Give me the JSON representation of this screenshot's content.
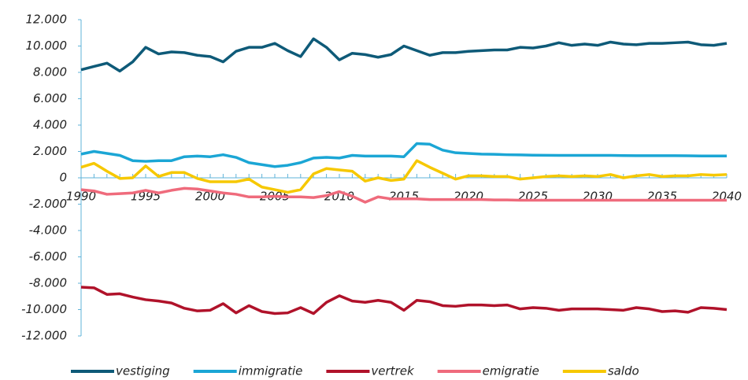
{
  "chart_data": {
    "type": "line",
    "x": [
      1990,
      1991,
      1992,
      1993,
      1994,
      1995,
      1996,
      1997,
      1998,
      1999,
      2000,
      2001,
      2002,
      2003,
      2004,
      2005,
      2006,
      2007,
      2008,
      2009,
      2010,
      2011,
      2012,
      2013,
      2014,
      2015,
      2016,
      2017,
      2018,
      2019,
      2020,
      2021,
      2022,
      2023,
      2024,
      2025,
      2026,
      2027,
      2028,
      2029,
      2030,
      2031,
      2032,
      2033,
      2034,
      2035,
      2036,
      2037,
      2038,
      2039,
      2040
    ],
    "series": [
      {
        "name": "vestiging",
        "color": "#0e5a78",
        "values": [
          8200,
          8450,
          8700,
          8100,
          8800,
          9900,
          9400,
          9550,
          9500,
          9300,
          9200,
          8800,
          9600,
          9900,
          9900,
          10200,
          9650,
          9200,
          10550,
          9900,
          8950,
          9450,
          9350,
          9150,
          9350,
          10000,
          9650,
          9300,
          9500,
          9500,
          9600,
          9650,
          9700,
          9700,
          9900,
          9850,
          10000,
          10250,
          10050,
          10150,
          10050,
          10300,
          10150,
          10100,
          10200,
          10200,
          10250,
          10300,
          10100,
          10050,
          10200
        ]
      },
      {
        "name": "immigratie",
        "color": "#1ba6d5",
        "values": [
          1800,
          2000,
          1850,
          1700,
          1300,
          1250,
          1300,
          1300,
          1600,
          1650,
          1600,
          1750,
          1550,
          1150,
          1000,
          850,
          950,
          1150,
          1500,
          1550,
          1500,
          1700,
          1650,
          1650,
          1650,
          1600,
          2600,
          2550,
          2100,
          1900,
          1850,
          1800,
          1780,
          1750,
          1740,
          1720,
          1710,
          1700,
          1700,
          1700,
          1700,
          1700,
          1690,
          1680,
          1680,
          1680,
          1680,
          1670,
          1660,
          1660,
          1660
        ]
      },
      {
        "name": "vertrek",
        "color": "#b0122a",
        "values": [
          -8300,
          -8350,
          -8850,
          -8800,
          -9050,
          -9250,
          -9350,
          -9500,
          -9900,
          -10100,
          -10050,
          -9550,
          -10250,
          -9700,
          -10150,
          -10300,
          -10250,
          -9850,
          -10300,
          -9450,
          -8950,
          -9350,
          -9450,
          -9300,
          -9450,
          -10050,
          -9300,
          -9400,
          -9700,
          -9750,
          -9650,
          -9650,
          -9700,
          -9650,
          -9950,
          -9850,
          -9900,
          -10050,
          -9950,
          -9950,
          -9950,
          -10000,
          -10050,
          -9850,
          -9950,
          -10150,
          -10100,
          -10200,
          -9850,
          -9900,
          -10000
        ]
      },
      {
        "name": "emigratie",
        "color": "#ef6b7c",
        "values": [
          -900,
          -1000,
          -1250,
          -1200,
          -1150,
          -950,
          -1150,
          -950,
          -800,
          -850,
          -1000,
          -1150,
          -1250,
          -1450,
          -1450,
          -1400,
          -1450,
          -1450,
          -1500,
          -1350,
          -1050,
          -1400,
          -1850,
          -1450,
          -1600,
          -1600,
          -1600,
          -1650,
          -1650,
          -1650,
          -1650,
          -1650,
          -1680,
          -1680,
          -1700,
          -1700,
          -1700,
          -1700,
          -1700,
          -1700,
          -1700,
          -1700,
          -1700,
          -1700,
          -1700,
          -1700,
          -1700,
          -1700,
          -1700,
          -1700,
          -1700
        ]
      },
      {
        "name": "saldo",
        "color": "#f6c800",
        "values": [
          800,
          1100,
          500,
          -50,
          0,
          900,
          100,
          400,
          400,
          -50,
          -300,
          -300,
          -300,
          -100,
          -700,
          -900,
          -1100,
          -900,
          300,
          700,
          600,
          500,
          -250,
          0,
          -200,
          -100,
          1300,
          800,
          350,
          -100,
          150,
          150,
          100,
          100,
          -100,
          0,
          100,
          150,
          100,
          150,
          100,
          250,
          0,
          150,
          250,
          100,
          150,
          150,
          250,
          200,
          250
        ]
      }
    ],
    "xlim": [
      1990,
      2040
    ],
    "xticks": [
      1990,
      1995,
      2000,
      2005,
      2010,
      2015,
      2020,
      2025,
      2030,
      2035,
      2040
    ],
    "ylim": [
      -12000,
      12000
    ],
    "yticks": [
      {
        "value": -12000,
        "label": "-12.000"
      },
      {
        "value": -10000,
        "label": "-10.000"
      },
      {
        "value": -8000,
        "label": "-8.000"
      },
      {
        "value": -6000,
        "label": "-6.000"
      },
      {
        "value": -4000,
        "label": "-4.000"
      },
      {
        "value": -2000,
        "label": "-2.000"
      },
      0,
      {
        "value": 2000,
        "label": "2.000"
      },
      {
        "value": 4000,
        "label": "4.000"
      },
      {
        "value": 6000,
        "label": "6.000"
      },
      {
        "value": 8000,
        "label": "8.000"
      },
      {
        "value": 10000,
        "label": "10.000"
      },
      {
        "value": 12000,
        "label": "12.000"
      }
    ],
    "legend": "bottom"
  }
}
